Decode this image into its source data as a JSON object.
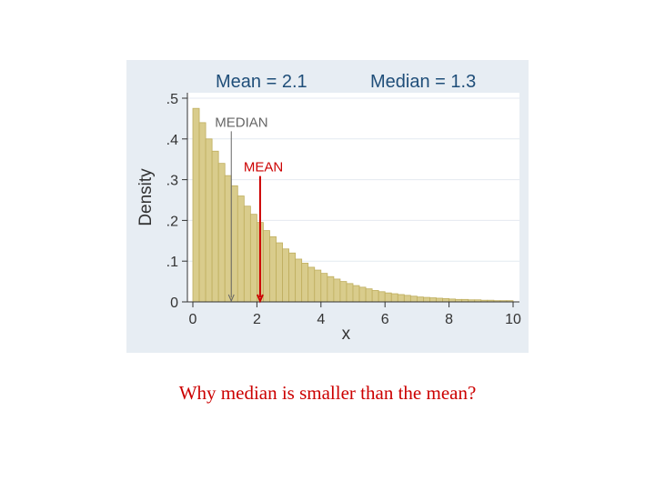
{
  "chart_data": {
    "type": "bar",
    "title_left": "Mean = 2.1",
    "title_right": "Median = 1.3",
    "xlabel": "x",
    "ylabel": "Density",
    "xlim": [
      0,
      10
    ],
    "ylim": [
      0,
      0.5
    ],
    "x_ticks": [
      {
        "value": 0,
        "label": "0"
      },
      {
        "value": 2,
        "label": "2"
      },
      {
        "value": 4,
        "label": "4"
      },
      {
        "value": 6,
        "label": "6"
      },
      {
        "value": 8,
        "label": "8"
      },
      {
        "value": 10,
        "label": "10"
      }
    ],
    "y_ticks": [
      {
        "value": 0,
        "label": "0"
      },
      {
        "value": 0.1,
        "label": ".1"
      },
      {
        "value": 0.2,
        "label": ".2"
      },
      {
        "value": 0.3,
        "label": ".3"
      },
      {
        "value": 0.4,
        "label": ".4"
      },
      {
        "value": 0.5,
        "label": ".5"
      }
    ],
    "grid": true,
    "bin_width": 0.2,
    "bin_starts": [
      0,
      0.2,
      0.4,
      0.6,
      0.8,
      1.0,
      1.2,
      1.4,
      1.6,
      1.8,
      2.0,
      2.2,
      2.4,
      2.6,
      2.8,
      3.0,
      3.2,
      3.4,
      3.6,
      3.8,
      4.0,
      4.2,
      4.4,
      4.6,
      4.8,
      5.0,
      5.2,
      5.4,
      5.6,
      5.8,
      6.0,
      6.2,
      6.4,
      6.6,
      6.8,
      7.0,
      7.2,
      7.4,
      7.6,
      7.8,
      8.0,
      8.2,
      8.4,
      8.6,
      8.8,
      9.0,
      9.2,
      9.4,
      9.6,
      9.8
    ],
    "values": [
      0.475,
      0.44,
      0.4,
      0.37,
      0.34,
      0.31,
      0.285,
      0.26,
      0.235,
      0.215,
      0.195,
      0.175,
      0.16,
      0.145,
      0.13,
      0.12,
      0.105,
      0.095,
      0.085,
      0.078,
      0.07,
      0.062,
      0.056,
      0.05,
      0.045,
      0.04,
      0.036,
      0.032,
      0.028,
      0.025,
      0.022,
      0.02,
      0.018,
      0.016,
      0.014,
      0.012,
      0.011,
      0.01,
      0.009,
      0.008,
      0.007,
      0.006,
      0.006,
      0.005,
      0.005,
      0.004,
      0.004,
      0.003,
      0.003,
      0.003
    ],
    "colors": {
      "panel_bg": "#e7edf3",
      "plot_bg": "#ffffff",
      "bar_fill": "#d9cc8c",
      "bar_stroke": "#bfae5e",
      "grid": "#e4eaf0",
      "median_line": "#666666",
      "mean_line": "#cc0000",
      "title": "#1f4e79"
    },
    "annotations": [
      {
        "label": "MEDIAN",
        "x": 1.2,
        "y_label": 0.43,
        "color": "#666666"
      },
      {
        "label": "MEAN",
        "x": 2.1,
        "y_label": 0.32,
        "color": "#cc0000"
      }
    ]
  },
  "caption": "Why median is smaller than the mean?"
}
